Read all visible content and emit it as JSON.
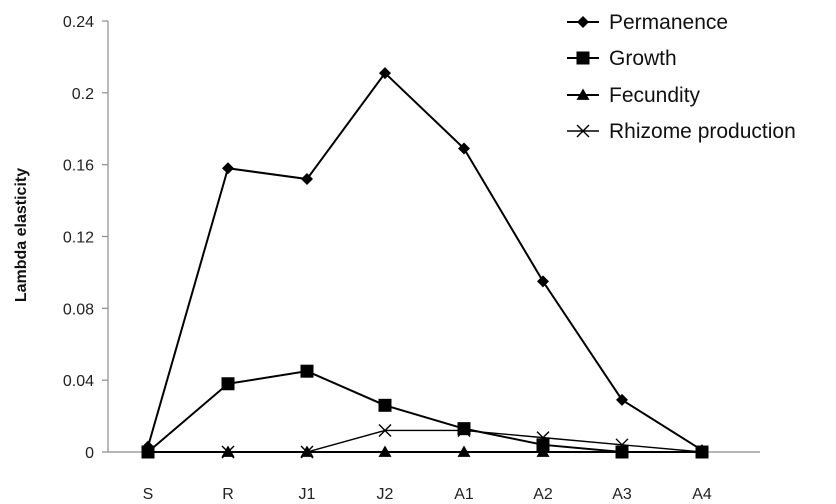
{
  "chart_data": {
    "type": "line",
    "title": "",
    "xlabel": "",
    "ylabel": "Lambda elasticity",
    "categories": [
      "S",
      "R",
      "J1",
      "J2",
      "A1",
      "A2",
      "A3",
      "A4"
    ],
    "y_ticks": [
      "0",
      "0.04",
      "0.08",
      "0.12",
      "0.16",
      "0.2",
      "0.24"
    ],
    "ylim": [
      0,
      0.24
    ],
    "grid": false,
    "legend_position": "top-right",
    "series": [
      {
        "name": "Permanence",
        "marker": "diamond",
        "values": [
          0.003,
          0.158,
          0.152,
          0.211,
          0.169,
          0.095,
          0.029,
          0.001
        ]
      },
      {
        "name": "Growth",
        "marker": "square",
        "values": [
          0.0,
          0.038,
          0.045,
          0.026,
          0.013,
          0.004,
          0.0,
          0.0
        ]
      },
      {
        "name": "Fecundity",
        "marker": "triangle",
        "values": [
          0.0,
          0.0,
          0.0,
          0.0,
          0.0,
          0.0,
          0.0,
          0.0
        ]
      },
      {
        "name": "Rhizome production",
        "marker": "x",
        "values": [
          0.0,
          0.0,
          0.0,
          0.012,
          0.012,
          0.008,
          0.004,
          0.0
        ]
      }
    ],
    "colors": {
      "line": "#000000",
      "axis": "#8c8c8c"
    }
  }
}
